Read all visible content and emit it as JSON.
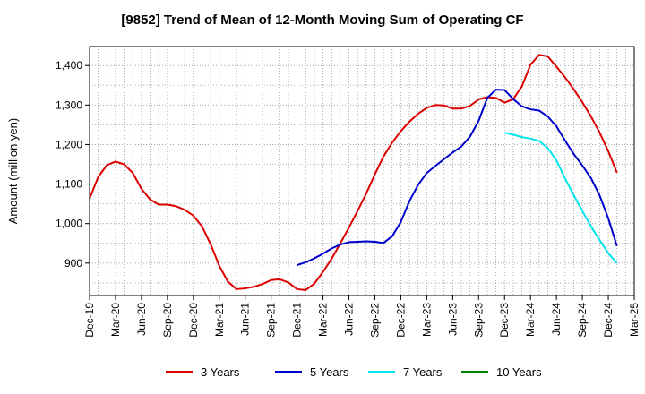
{
  "chart_data": {
    "type": "line",
    "title": "[9852]  Trend of Mean of 12-Month Moving Sum of Operating CF",
    "xlabel": "",
    "ylabel": "Amount (million yen)",
    "ylim": [
      818,
      1448
    ],
    "yticks": [
      900,
      1000,
      1100,
      1200,
      1300,
      1400
    ],
    "ytick_labels": [
      "900",
      "1,000",
      "1,100",
      "1,200",
      "1,300",
      "1,400"
    ],
    "x_start": "Dec-19",
    "x_months": 63,
    "xticks": [
      "Dec-19",
      "Mar-20",
      "Jun-20",
      "Sep-20",
      "Dec-20",
      "Mar-21",
      "Jun-21",
      "Sep-21",
      "Dec-21",
      "Mar-22",
      "Jun-22",
      "Sep-22",
      "Dec-22",
      "Mar-23",
      "Jun-23",
      "Sep-23",
      "Dec-23",
      "Mar-24",
      "Jun-24",
      "Sep-24",
      "Dec-24",
      "Mar-25"
    ],
    "grid": true,
    "legend_position": "bottom",
    "series": [
      {
        "name": "3 Years",
        "color": "#dd0000",
        "start_index": 0,
        "values": [
          1063,
          1118,
          1148,
          1157,
          1150,
          1128,
          1088,
          1061,
          1048,
          1048,
          1044,
          1035,
          1020,
          993,
          948,
          893,
          853,
          834,
          836,
          840,
          847,
          857,
          859,
          851,
          834,
          832,
          848,
          878,
          911,
          950,
          990,
          1032,
          1076,
          1125,
          1170,
          1205,
          1234,
          1258,
          1278,
          1293,
          1300,
          1299,
          1291,
          1291,
          1298,
          1314,
          1320,
          1318,
          1306,
          1315,
          1347,
          1402,
          1427,
          1423,
          1397,
          1370,
          1340,
          1307,
          1271,
          1230,
          1183,
          1129
        ]
      },
      {
        "name": "5 Years",
        "color": "#0000cc",
        "start_index": 24,
        "values": [
          895,
          902,
          912,
          924,
          937,
          947,
          953,
          954,
          955,
          954,
          951,
          968,
          1004,
          1057,
          1098,
          1128,
          1146,
          1163,
          1180,
          1195,
          1220,
          1260,
          1318,
          1339,
          1338,
          1315,
          1297,
          1289,
          1286,
          1271,
          1246,
          1210,
          1176,
          1147,
          1115,
          1071,
          1013,
          943
        ]
      },
      {
        "name": "7 Years",
        "color": "#00e5ee",
        "start_index": 48,
        "values": [
          1230,
          1225,
          1219,
          1215,
          1209,
          1191,
          1160,
          1114,
          1072,
          1032,
          993,
          958,
          925,
          900
        ]
      },
      {
        "name": "10 Years",
        "color": "#008000",
        "start_index": 0,
        "values": []
      }
    ]
  }
}
